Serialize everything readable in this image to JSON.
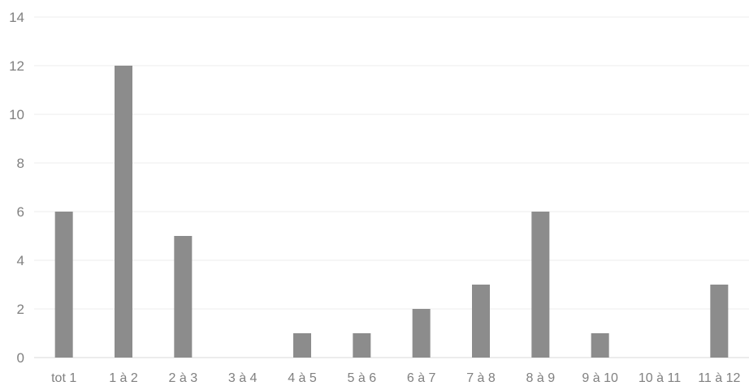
{
  "chart_data": {
    "type": "bar",
    "title": "",
    "xlabel": "",
    "ylabel": "",
    "categories": [
      "tot 1",
      "1 à 2",
      "2 à 3",
      "3 à 4",
      "4 à 5",
      "5 à 6",
      "6 à 7",
      "7 à 8",
      "8 à 9",
      "9 à 10",
      "10 à 11",
      "11 à 12"
    ],
    "values": [
      6,
      12,
      5,
      0,
      1,
      1,
      2,
      3,
      6,
      1,
      0,
      3
    ],
    "ylim": [
      0,
      14
    ],
    "yticks": [
      0,
      2,
      4,
      6,
      8,
      10,
      12,
      14
    ],
    "grid": true,
    "legend": "none",
    "bar_color": "#8c8c8c"
  }
}
